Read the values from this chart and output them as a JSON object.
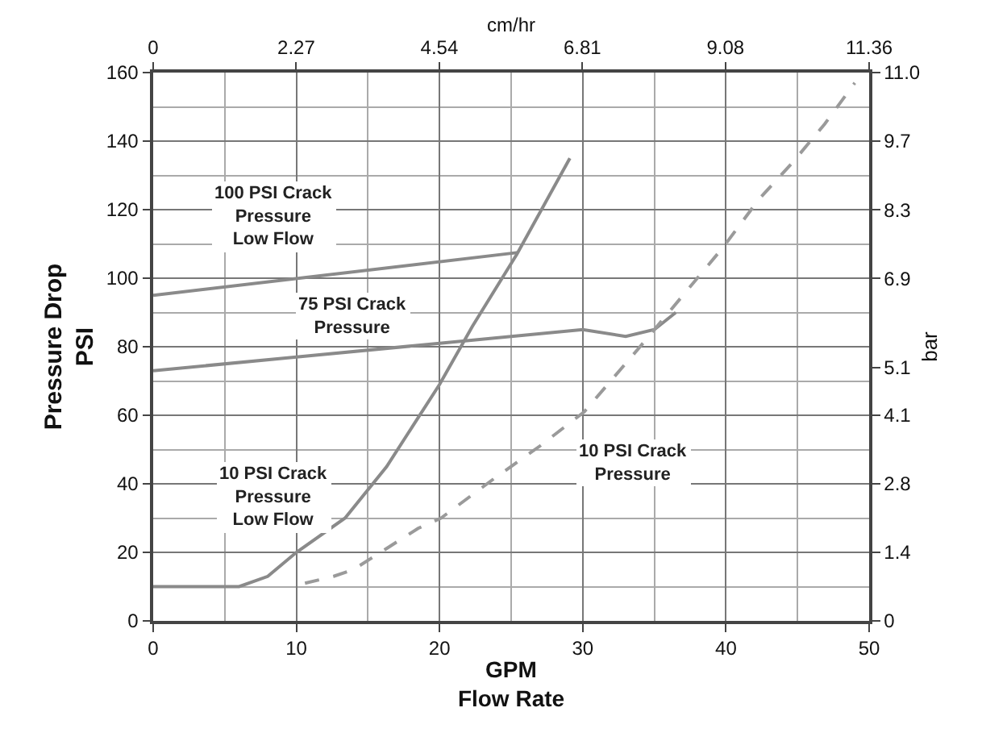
{
  "chart_data": {
    "type": "line",
    "xlabel": "GPM\nFlow Rate",
    "ylabel": "Pressure Drop\nPSI",
    "y2label": "bar",
    "x2label": "cm/hr",
    "xlim": [
      0,
      50
    ],
    "xticks": [
      0,
      10,
      20,
      30,
      40,
      50
    ],
    "ylim": [
      0,
      160
    ],
    "yticks": [
      0,
      20,
      40,
      60,
      80,
      100,
      120,
      140,
      160
    ],
    "x2lim": [
      0,
      11.36
    ],
    "x2ticks": [
      0,
      2.27,
      4.54,
      6.81,
      9.08,
      11.36
    ],
    "y2lim": [
      0,
      11.03
    ],
    "y2ticks": [
      0,
      {
        "value": 1.38,
        "label": "1.4"
      },
      {
        "value": 2.76,
        "label": "2.8"
      },
      {
        "value": 4.14,
        "label": "4.1"
      },
      5.1,
      {
        "value": 6.89,
        "label": "6.9"
      },
      {
        "value": 8.27,
        "label": "8.3"
      },
      {
        "value": 9.65,
        "label": "9.7"
      },
      {
        "value": 11.03,
        "label": "11.0"
      }
    ],
    "grid": true,
    "legend": false,
    "marker": "none",
    "series": [
      {
        "name": "100 PSI Crack\nPressure\nLow Flow",
        "color": "#8a8a8a",
        "x": [
          0,
          25.5
        ],
        "values": [
          95,
          107.5
        ]
      },
      {
        "name": "75 PSI Crack\nPressure",
        "color": "#8a8a8a",
        "x": [
          0,
          10,
          20,
          30,
          33,
          35,
          36.5
        ],
        "values": [
          73,
          77,
          81,
          85,
          83,
          85,
          90
        ]
      },
      {
        "name": "10 PSI Crack\nPressure\nLow Flow",
        "color": "#8a8a8a",
        "x": [
          0,
          6,
          8,
          10,
          13.4,
          16.3,
          20,
          22.3,
          25.4,
          29.1
        ],
        "values": [
          10,
          10,
          13,
          20,
          30,
          45,
          69,
          86,
          107,
          135
        ]
      },
      {
        "name": "10 PSI Crack\nPressure",
        "color": "#9a9a9a",
        "line_style": "dashed",
        "x": [
          10.6,
          12.6,
          14,
          17,
          18.5,
          20.1,
          23.8,
          27,
          30.1,
          34,
          37.2,
          39.8,
          42.3,
          44.7,
          46.9,
          49
        ],
        "values": [
          11,
          13,
          15,
          23,
          27,
          30,
          41.5,
          51,
          61,
          80,
          96,
          109,
          123,
          134,
          145,
          157
        ]
      }
    ]
  }
}
